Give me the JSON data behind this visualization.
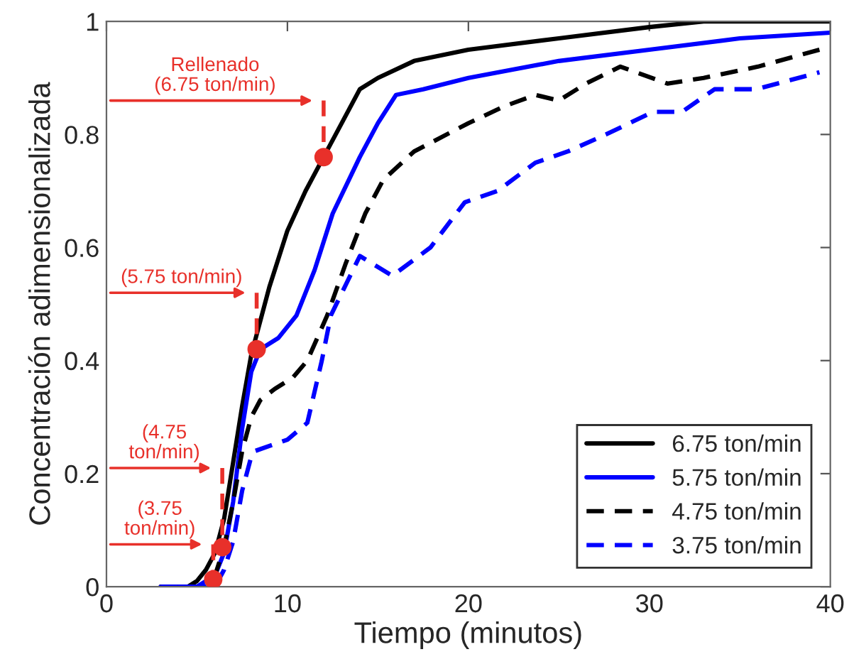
{
  "chart_data": {
    "type": "line",
    "xlabel": "Tiempo (minutos)",
    "ylabel": "Concentración adimensionalizada",
    "xlim": [
      0,
      40
    ],
    "ylim": [
      0,
      1
    ],
    "xticks": [
      0,
      10,
      20,
      30,
      40
    ],
    "yticks": [
      0,
      0.2,
      0.4,
      0.6,
      0.8,
      1
    ],
    "grid": false,
    "legend": "bottom right",
    "series": [
      {
        "name": "6.75 ton/min",
        "color": "#000000",
        "line_style": "solid",
        "x": [
          3,
          4.5,
          5,
          5.5,
          6,
          6.5,
          7,
          7.5,
          8,
          9,
          10,
          11,
          12,
          13,
          14,
          15,
          17,
          20,
          25,
          30,
          33,
          40
        ],
        "values": [
          0,
          0,
          0.01,
          0.03,
          0.06,
          0.12,
          0.22,
          0.32,
          0.41,
          0.53,
          0.63,
          0.7,
          0.76,
          0.82,
          0.88,
          0.9,
          0.93,
          0.95,
          0.97,
          0.99,
          1,
          1
        ]
      },
      {
        "name": "5.75 ton/min",
        "color": "#0000ff",
        "line_style": "solid",
        "x": [
          3,
          5,
          6,
          6.5,
          7,
          7.5,
          8,
          8.5,
          9.5,
          10.5,
          11.5,
          12.5,
          14,
          15,
          16,
          17.5,
          20,
          25,
          30,
          35,
          40
        ],
        "values": [
          0,
          0,
          0.02,
          0.06,
          0.15,
          0.28,
          0.38,
          0.42,
          0.44,
          0.48,
          0.56,
          0.66,
          0.76,
          0.82,
          0.87,
          0.88,
          0.9,
          0.93,
          0.95,
          0.97,
          0.98
        ]
      },
      {
        "name": "4.75 ton/min",
        "color": "#000000",
        "line_style": "dashed",
        "x": [
          3,
          5.5,
          6,
          6.5,
          7,
          7.5,
          8,
          8.5,
          9.3,
          10.3,
          11.1,
          12.2,
          13.2,
          14.3,
          15.3,
          17,
          20,
          22,
          23.7,
          25,
          26.5,
          28.4,
          31,
          33,
          36,
          39.4
        ],
        "values": [
          0,
          0,
          0.02,
          0.07,
          0.15,
          0.24,
          0.3,
          0.33,
          0.35,
          0.37,
          0.4,
          0.48,
          0.57,
          0.66,
          0.72,
          0.77,
          0.82,
          0.85,
          0.87,
          0.86,
          0.89,
          0.92,
          0.89,
          0.9,
          0.92,
          0.95
        ]
      },
      {
        "name": "3.75 ton/min",
        "color": "#0000ff",
        "line_style": "dashed",
        "x": [
          3,
          6,
          6.5,
          7,
          7.5,
          8,
          8.2,
          10,
          11.1,
          11.9,
          12.4,
          14,
          15.8,
          17.9,
          19.8,
          21.6,
          23.7,
          25.5,
          27.6,
          30.2,
          31.8,
          33.6,
          35.9,
          39.4
        ],
        "values": [
          0,
          0,
          0.03,
          0.08,
          0.17,
          0.23,
          0.24,
          0.26,
          0.29,
          0.4,
          0.48,
          0.585,
          0.55,
          0.6,
          0.68,
          0.7,
          0.75,
          0.77,
          0.8,
          0.84,
          0.84,
          0.88,
          0.88,
          0.91
        ]
      },
      {
        "type": "line",
        "color": "#e8302a",
        "line_style": "dashed",
        "x": [
          12,
          12
        ],
        "values": [
          0.86,
          0.76
        ]
      },
      {
        "type": "line",
        "color": "#e8302a",
        "line_style": "dashed",
        "x": [
          8.3,
          8.3
        ],
        "values": [
          0.52,
          0.42
        ]
      },
      {
        "type": "line",
        "color": "#e8302a",
        "line_style": "dashed",
        "x": [
          6.4,
          6.4
        ],
        "values": [
          0.21,
          0.07
        ]
      },
      {
        "type": "line",
        "color": "#e8302a",
        "line_style": "dashed",
        "x": [
          5.9,
          5.9
        ],
        "values": [
          0.075,
          0.013
        ]
      },
      {
        "type": "scatter",
        "color": "#e8302a",
        "marker": "circle",
        "x": [
          5.9,
          6.4,
          8.3,
          12
        ],
        "values": [
          0.013,
          0.07,
          0.42,
          0.76
        ]
      }
    ],
    "annotations": [
      {
        "text": "Rellenado\n(6.75 ton/min)",
        "x": 12,
        "y": 0.86
      },
      {
        "text": "(5.75 ton/min)",
        "x": 8.3,
        "y": 0.52
      },
      {
        "text": "(4.75\nton/min)",
        "x": 6.4,
        "y": 0.21
      },
      {
        "text": "(3.75\nton/min)",
        "x": 5.9,
        "y": 0.075
      }
    ]
  }
}
